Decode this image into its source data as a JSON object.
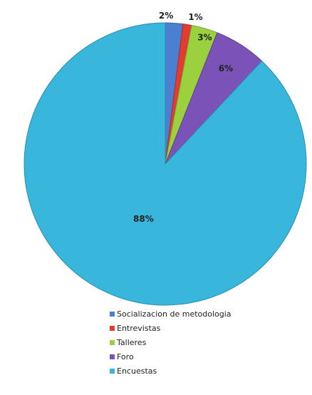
{
  "chart_data": {
    "type": "pie",
    "categories": [
      "Socializacion de metodologia",
      "Entrevistas",
      "Talleres",
      "Foro",
      "Encuestas"
    ],
    "values": [
      2,
      1,
      3,
      6,
      88
    ],
    "labels": [
      "2%",
      "1%",
      "3%",
      "6%",
      "88%"
    ],
    "colors": [
      "#4a7fd1",
      "#e03c32",
      "#9bd13e",
      "#7b52b8",
      "#38b6dc"
    ],
    "legend_position": "bottom"
  }
}
